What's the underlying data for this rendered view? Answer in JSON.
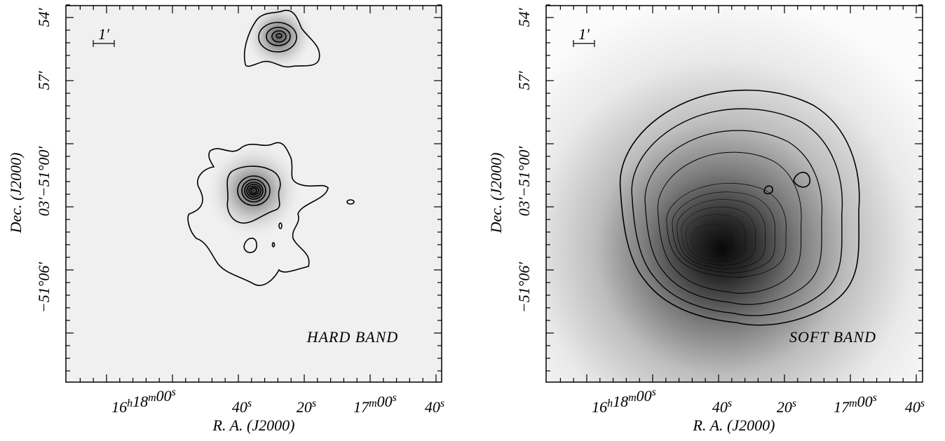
{
  "panels": [
    {
      "band_label": "HARD BAND",
      "scale_bar": "1′",
      "y_axis_title": "Dec. (J2000)",
      "x_axis_title": "R. A. (J2000)",
      "y_tick_labels": [
        "54′",
        "57′",
        "−51°00′",
        "03′",
        "−51°06′"
      ],
      "x_tick_labels": [
        [
          [
            "16",
            "h"
          ],
          [
            "18",
            "m"
          ],
          [
            "00",
            "s"
          ]
        ],
        [
          [
            "40",
            "s"
          ]
        ],
        [
          [
            "20",
            "s"
          ]
        ],
        [
          [
            "17",
            "m"
          ],
          [
            "00",
            "s"
          ]
        ],
        [
          [
            "40",
            "s"
          ]
        ]
      ]
    },
    {
      "band_label": "SOFT BAND",
      "scale_bar": "1′",
      "y_axis_title": "Dec. (J2000)",
      "x_axis_title": "R. A. (J2000)",
      "y_tick_labels": [
        "54′",
        "57′",
        "−51°00′",
        "03′",
        "−51°06′"
      ],
      "x_tick_labels": [
        [
          [
            "16",
            "h"
          ],
          [
            "18",
            "m"
          ],
          [
            "00",
            "s"
          ]
        ],
        [
          [
            "40",
            "s"
          ]
        ],
        [
          [
            "20",
            "s"
          ]
        ],
        [
          [
            "17",
            "m"
          ],
          [
            "00",
            "s"
          ]
        ],
        [
          [
            "40",
            "s"
          ]
        ]
      ]
    }
  ]
}
